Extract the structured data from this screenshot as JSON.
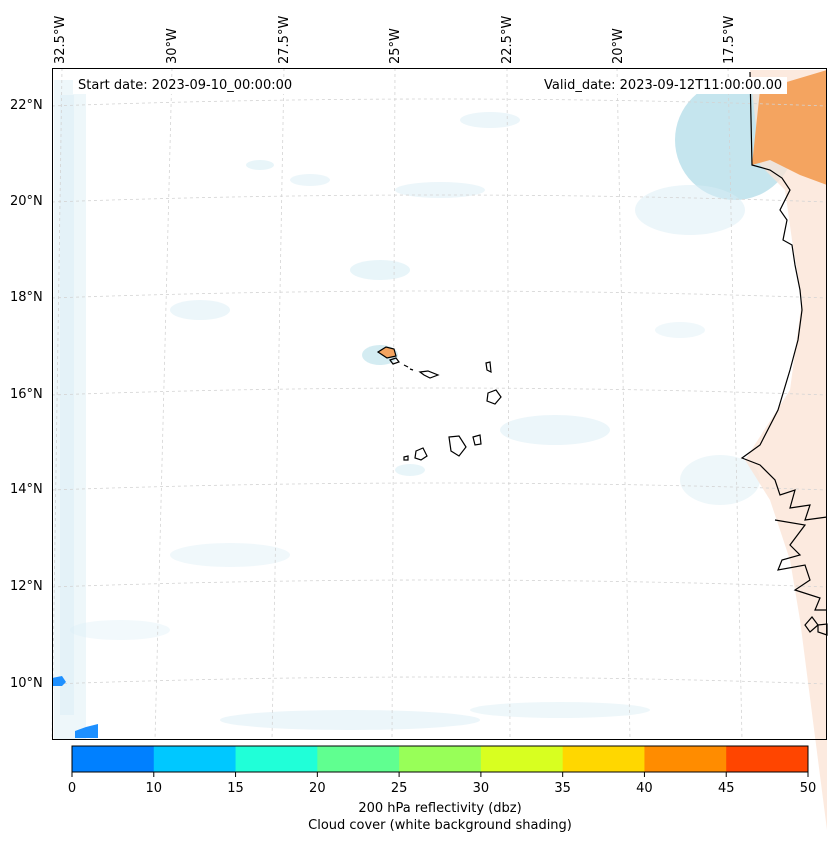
{
  "map": {
    "start_date_text": "Start date: 2023-09-10_00:00:00",
    "valid_date_text": "Valid_date: 2023-09-12T11:00:00.00",
    "longitude_labels": [
      "32.5°W",
      "30°W",
      "27.5°W",
      "25°W",
      "22.5°W",
      "20°W",
      "17.5°W"
    ],
    "latitude_labels": [
      "22°N",
      "20°N",
      "18°N",
      "16°N",
      "14°N",
      "12°N",
      "10°N"
    ],
    "features": [
      "Cabo Verde islands",
      "West African coastline"
    ]
  },
  "colorbar": {
    "ticks": [
      "0",
      "10",
      "15",
      "20",
      "25",
      "30",
      "35",
      "40",
      "45",
      "50"
    ],
    "colors": [
      "#0080ff",
      "#00c8ff",
      "#20ffd8",
      "#60ff90",
      "#98ff58",
      "#d8ff20",
      "#ffd700",
      "#ff8c00",
      "#ff4500"
    ],
    "label": "200 hPa reflectivity (dbz)",
    "sublabel": "Cloud cover (white background shading)"
  }
}
